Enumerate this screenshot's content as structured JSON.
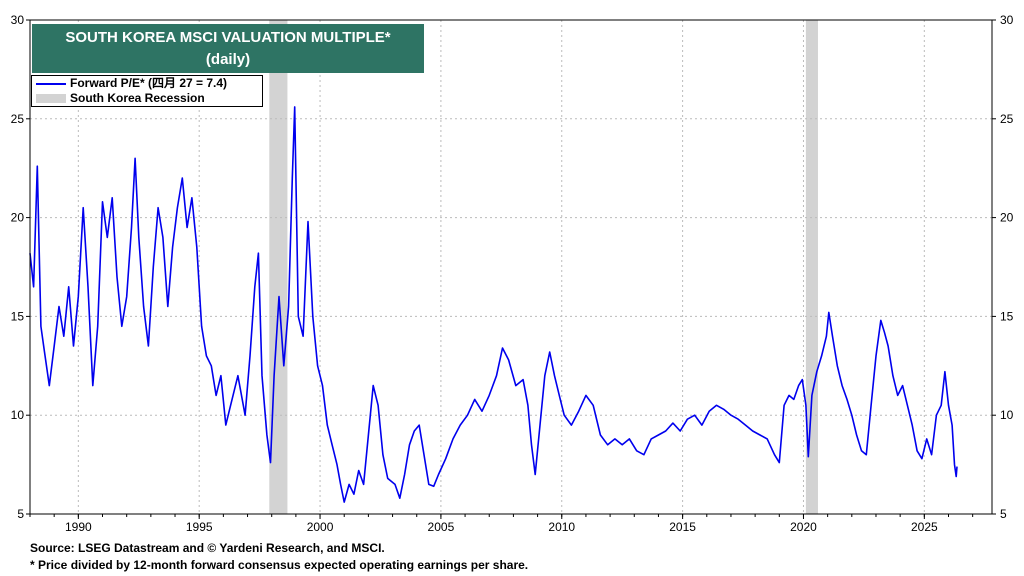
{
  "chart_data": {
    "type": "line",
    "title": "SOUTH KOREA MSCI VALUATION MULTIPLE*",
    "subtitle": "(daily)",
    "xlabel": "",
    "ylabel": "",
    "x_ticks": [
      "1990",
      "1995",
      "2000",
      "2005",
      "2010",
      "2015",
      "2020",
      "2025"
    ],
    "y_ticks": [
      "5",
      "10",
      "15",
      "20",
      "25",
      "30"
    ],
    "xlim": [
      1988.0,
      2027.8
    ],
    "ylim": [
      5,
      30
    ],
    "grid": true,
    "legend_placement": "top-left",
    "series": [
      {
        "name": "Forward P/E* (四月 27 = 7.4)",
        "color": "#0000ee",
        "points": [
          [
            1988.0,
            18.2
          ],
          [
            1988.15,
            16.5
          ],
          [
            1988.3,
            22.6
          ],
          [
            1988.45,
            14.5
          ],
          [
            1988.6,
            13.2
          ],
          [
            1988.8,
            11.5
          ],
          [
            1989.0,
            13.5
          ],
          [
            1989.2,
            15.5
          ],
          [
            1989.4,
            14.0
          ],
          [
            1989.6,
            16.5
          ],
          [
            1989.8,
            13.5
          ],
          [
            1990.0,
            16.0
          ],
          [
            1990.2,
            20.5
          ],
          [
            1990.4,
            16.5
          ],
          [
            1990.6,
            11.5
          ],
          [
            1990.8,
            14.5
          ],
          [
            1991.0,
            20.8
          ],
          [
            1991.2,
            19.0
          ],
          [
            1991.4,
            21.0
          ],
          [
            1991.6,
            17.0
          ],
          [
            1991.8,
            14.5
          ],
          [
            1992.0,
            16.0
          ],
          [
            1992.2,
            19.5
          ],
          [
            1992.35,
            23.0
          ],
          [
            1992.5,
            19.0
          ],
          [
            1992.7,
            15.5
          ],
          [
            1992.9,
            13.5
          ],
          [
            1993.1,
            17.5
          ],
          [
            1993.3,
            20.5
          ],
          [
            1993.5,
            19.0
          ],
          [
            1993.7,
            15.5
          ],
          [
            1993.9,
            18.5
          ],
          [
            1994.1,
            20.5
          ],
          [
            1994.3,
            22.0
          ],
          [
            1994.5,
            19.5
          ],
          [
            1994.7,
            21.0
          ],
          [
            1994.9,
            18.5
          ],
          [
            1995.1,
            14.5
          ],
          [
            1995.3,
            13.0
          ],
          [
            1995.5,
            12.5
          ],
          [
            1995.7,
            11.0
          ],
          [
            1995.9,
            12.0
          ],
          [
            1996.1,
            9.5
          ],
          [
            1996.3,
            10.5
          ],
          [
            1996.6,
            12.0
          ],
          [
            1996.9,
            10.0
          ],
          [
            1997.1,
            13.0
          ],
          [
            1997.3,
            16.5
          ],
          [
            1997.45,
            18.2
          ],
          [
            1997.6,
            12.0
          ],
          [
            1997.8,
            9.0
          ],
          [
            1997.95,
            7.6
          ],
          [
            1998.1,
            12.0
          ],
          [
            1998.3,
            16.0
          ],
          [
            1998.5,
            12.5
          ],
          [
            1998.7,
            15.5
          ],
          [
            1998.85,
            22.0
          ],
          [
            1998.95,
            25.6
          ],
          [
            1999.1,
            15.0
          ],
          [
            1999.3,
            14.0
          ],
          [
            1999.5,
            19.8
          ],
          [
            1999.7,
            15.0
          ],
          [
            1999.9,
            12.5
          ],
          [
            2000.1,
            11.5
          ],
          [
            2000.3,
            9.5
          ],
          [
            2000.5,
            8.5
          ],
          [
            2000.7,
            7.5
          ],
          [
            2000.85,
            6.5
          ],
          [
            2001.0,
            5.6
          ],
          [
            2001.2,
            6.5
          ],
          [
            2001.4,
            6.0
          ],
          [
            2001.6,
            7.2
          ],
          [
            2001.8,
            6.5
          ],
          [
            2002.0,
            9.0
          ],
          [
            2002.2,
            11.5
          ],
          [
            2002.4,
            10.5
          ],
          [
            2002.6,
            8.0
          ],
          [
            2002.8,
            6.8
          ],
          [
            2003.1,
            6.5
          ],
          [
            2003.3,
            5.8
          ],
          [
            2003.5,
            7.0
          ],
          [
            2003.7,
            8.5
          ],
          [
            2003.9,
            9.2
          ],
          [
            2004.1,
            9.5
          ],
          [
            2004.3,
            8.0
          ],
          [
            2004.5,
            6.5
          ],
          [
            2004.7,
            6.4
          ],
          [
            2004.9,
            7.0
          ],
          [
            2005.2,
            7.8
          ],
          [
            2005.5,
            8.8
          ],
          [
            2005.8,
            9.5
          ],
          [
            2006.1,
            10.0
          ],
          [
            2006.4,
            10.8
          ],
          [
            2006.7,
            10.2
          ],
          [
            2007.0,
            11.0
          ],
          [
            2007.3,
            12.0
          ],
          [
            2007.55,
            13.4
          ],
          [
            2007.8,
            12.8
          ],
          [
            2008.1,
            11.5
          ],
          [
            2008.4,
            11.8
          ],
          [
            2008.6,
            10.5
          ],
          [
            2008.75,
            8.5
          ],
          [
            2008.9,
            7.0
          ],
          [
            2009.1,
            9.5
          ],
          [
            2009.3,
            12.0
          ],
          [
            2009.5,
            13.2
          ],
          [
            2009.7,
            12.0
          ],
          [
            2009.9,
            11.0
          ],
          [
            2010.1,
            10.0
          ],
          [
            2010.4,
            9.5
          ],
          [
            2010.7,
            10.2
          ],
          [
            2011.0,
            11.0
          ],
          [
            2011.3,
            10.5
          ],
          [
            2011.6,
            9.0
          ],
          [
            2011.9,
            8.5
          ],
          [
            2012.2,
            8.8
          ],
          [
            2012.5,
            8.5
          ],
          [
            2012.8,
            8.8
          ],
          [
            2013.1,
            8.2
          ],
          [
            2013.4,
            8.0
          ],
          [
            2013.7,
            8.8
          ],
          [
            2014.0,
            9.0
          ],
          [
            2014.3,
            9.2
          ],
          [
            2014.6,
            9.6
          ],
          [
            2014.9,
            9.2
          ],
          [
            2015.2,
            9.8
          ],
          [
            2015.5,
            10.0
          ],
          [
            2015.8,
            9.5
          ],
          [
            2016.1,
            10.2
          ],
          [
            2016.4,
            10.5
          ],
          [
            2016.7,
            10.3
          ],
          [
            2017.0,
            10.0
          ],
          [
            2017.3,
            9.8
          ],
          [
            2017.6,
            9.5
          ],
          [
            2017.9,
            9.2
          ],
          [
            2018.2,
            9.0
          ],
          [
            2018.5,
            8.8
          ],
          [
            2018.8,
            8.0
          ],
          [
            2019.0,
            7.6
          ],
          [
            2019.2,
            10.5
          ],
          [
            2019.4,
            11.0
          ],
          [
            2019.6,
            10.8
          ],
          [
            2019.8,
            11.5
          ],
          [
            2019.95,
            11.8
          ],
          [
            2020.1,
            10.5
          ],
          [
            2020.2,
            7.9
          ],
          [
            2020.35,
            11.0
          ],
          [
            2020.55,
            12.2
          ],
          [
            2020.75,
            13.0
          ],
          [
            2020.95,
            14.0
          ],
          [
            2021.05,
            15.2
          ],
          [
            2021.2,
            14.0
          ],
          [
            2021.4,
            12.5
          ],
          [
            2021.6,
            11.5
          ],
          [
            2021.8,
            10.8
          ],
          [
            2022.0,
            10.0
          ],
          [
            2022.2,
            9.0
          ],
          [
            2022.4,
            8.2
          ],
          [
            2022.6,
            8.0
          ],
          [
            2022.8,
            10.5
          ],
          [
            2023.0,
            13.0
          ],
          [
            2023.2,
            14.8
          ],
          [
            2023.35,
            14.2
          ],
          [
            2023.5,
            13.5
          ],
          [
            2023.7,
            12.0
          ],
          [
            2023.9,
            11.0
          ],
          [
            2024.1,
            11.5
          ],
          [
            2024.3,
            10.5
          ],
          [
            2024.5,
            9.5
          ],
          [
            2024.7,
            8.2
          ],
          [
            2024.9,
            7.8
          ],
          [
            2025.1,
            8.8
          ],
          [
            2025.3,
            8.0
          ],
          [
            2025.5,
            10.0
          ],
          [
            2025.7,
            10.5
          ],
          [
            2025.85,
            12.2
          ],
          [
            2026.0,
            10.5
          ],
          [
            2026.15,
            9.5
          ],
          [
            2026.25,
            7.5
          ],
          [
            2026.32,
            6.9
          ],
          [
            2026.35,
            7.4
          ]
        ]
      }
    ],
    "recessions": {
      "name": "South Korea Recession",
      "color": "#d3d3d3",
      "periods": [
        [
          1997.9,
          1998.65
        ],
        [
          2020.1,
          2020.6
        ]
      ]
    },
    "footnotes": [
      "Source: LSEG Datastream and © Yardeni Research, and MSCI.",
      "* Price divided by 12-month forward consensus expected operating earnings per share."
    ]
  }
}
